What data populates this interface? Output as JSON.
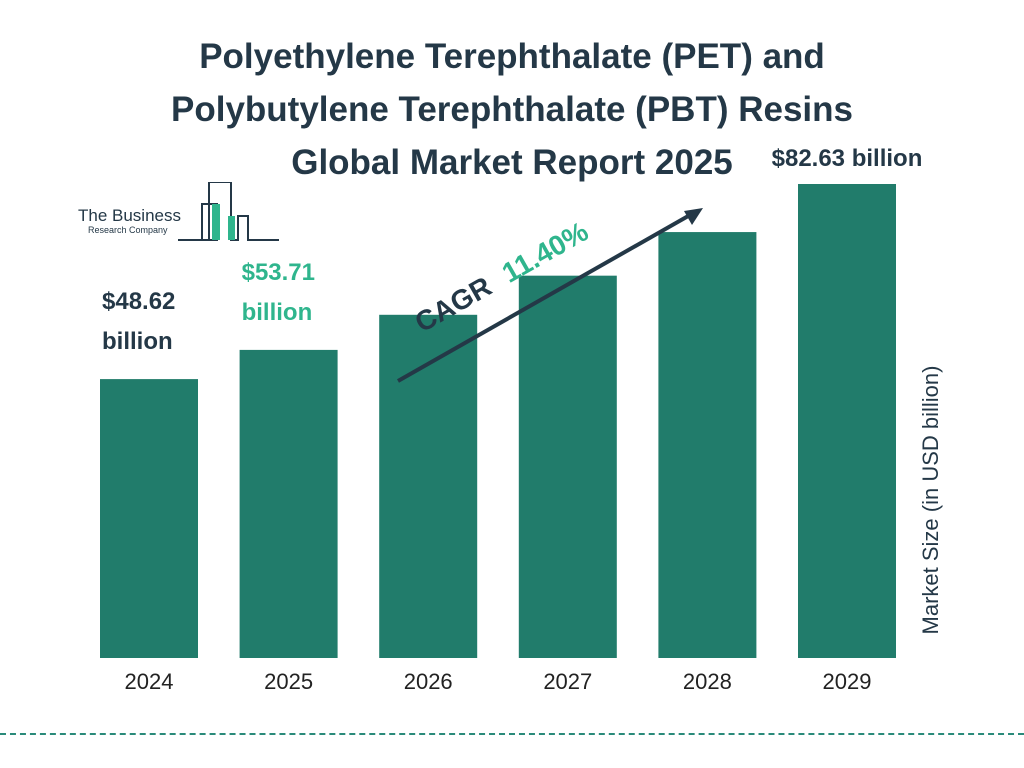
{
  "title_lines": [
    "Polyethylene Terephthalate (PET) and",
    "Polybutylene Terephthalate (PBT) Resins",
    "Global Market Report 2025"
  ],
  "logo": {
    "line1": "The Business",
    "line2": "Research Company"
  },
  "colors": {
    "bar": "#217c6b",
    "accent": "#2fb58d",
    "text": "#243847"
  },
  "chart_data": {
    "type": "bar",
    "categories": [
      "2024",
      "2025",
      "2026",
      "2027",
      "2028",
      "2029"
    ],
    "values": [
      48.62,
      53.71,
      59.83,
      66.65,
      74.25,
      82.63
    ],
    "data_labels": [
      {
        "index": 0,
        "lines": [
          "$48.62",
          "billion"
        ],
        "color": "#243847"
      },
      {
        "index": 1,
        "lines": [
          "$53.71",
          "billion"
        ],
        "color": "#2fb58d"
      },
      {
        "index": 5,
        "lines": [
          "$82.63 billion"
        ],
        "color": "#243847"
      }
    ],
    "ylabel": "Market Size (in USD billion)",
    "ylim": [
      0,
      90
    ],
    "cagr": {
      "label": "CAGR",
      "value": "11.40%"
    },
    "grid": false
  }
}
